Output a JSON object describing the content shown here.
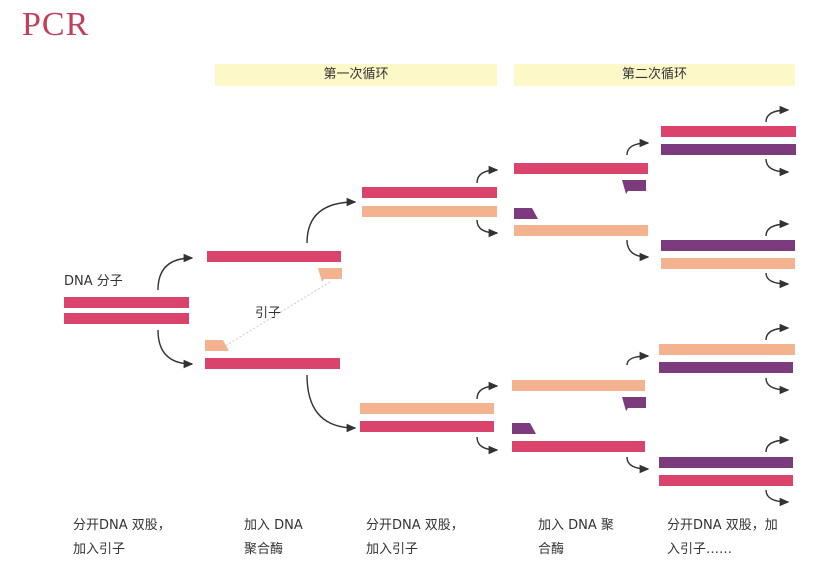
{
  "title": "PCR",
  "cycles": [
    "第一次循环",
    "第二次循环"
  ],
  "labels": {
    "dna_molecule": "DNA 分子",
    "primer": "引子"
  },
  "steps": [
    [
      "分开DNA 双股，",
      "加入引子"
    ],
    [
      "加入 DNA",
      "聚合酶"
    ],
    [
      "分开DNA 双股，",
      "加入引子"
    ],
    [
      "加入 DNA 聚",
      "合酶"
    ],
    [
      "分开DNA 双股，加",
      "入引子……"
    ]
  ],
  "colors": {
    "original_strand": "#d9436c",
    "first_copy_strand": "#f3b38f",
    "second_copy_strand": "#7b3b7c",
    "cycle_band": "#fdf8c8",
    "title": "#c0405a"
  }
}
